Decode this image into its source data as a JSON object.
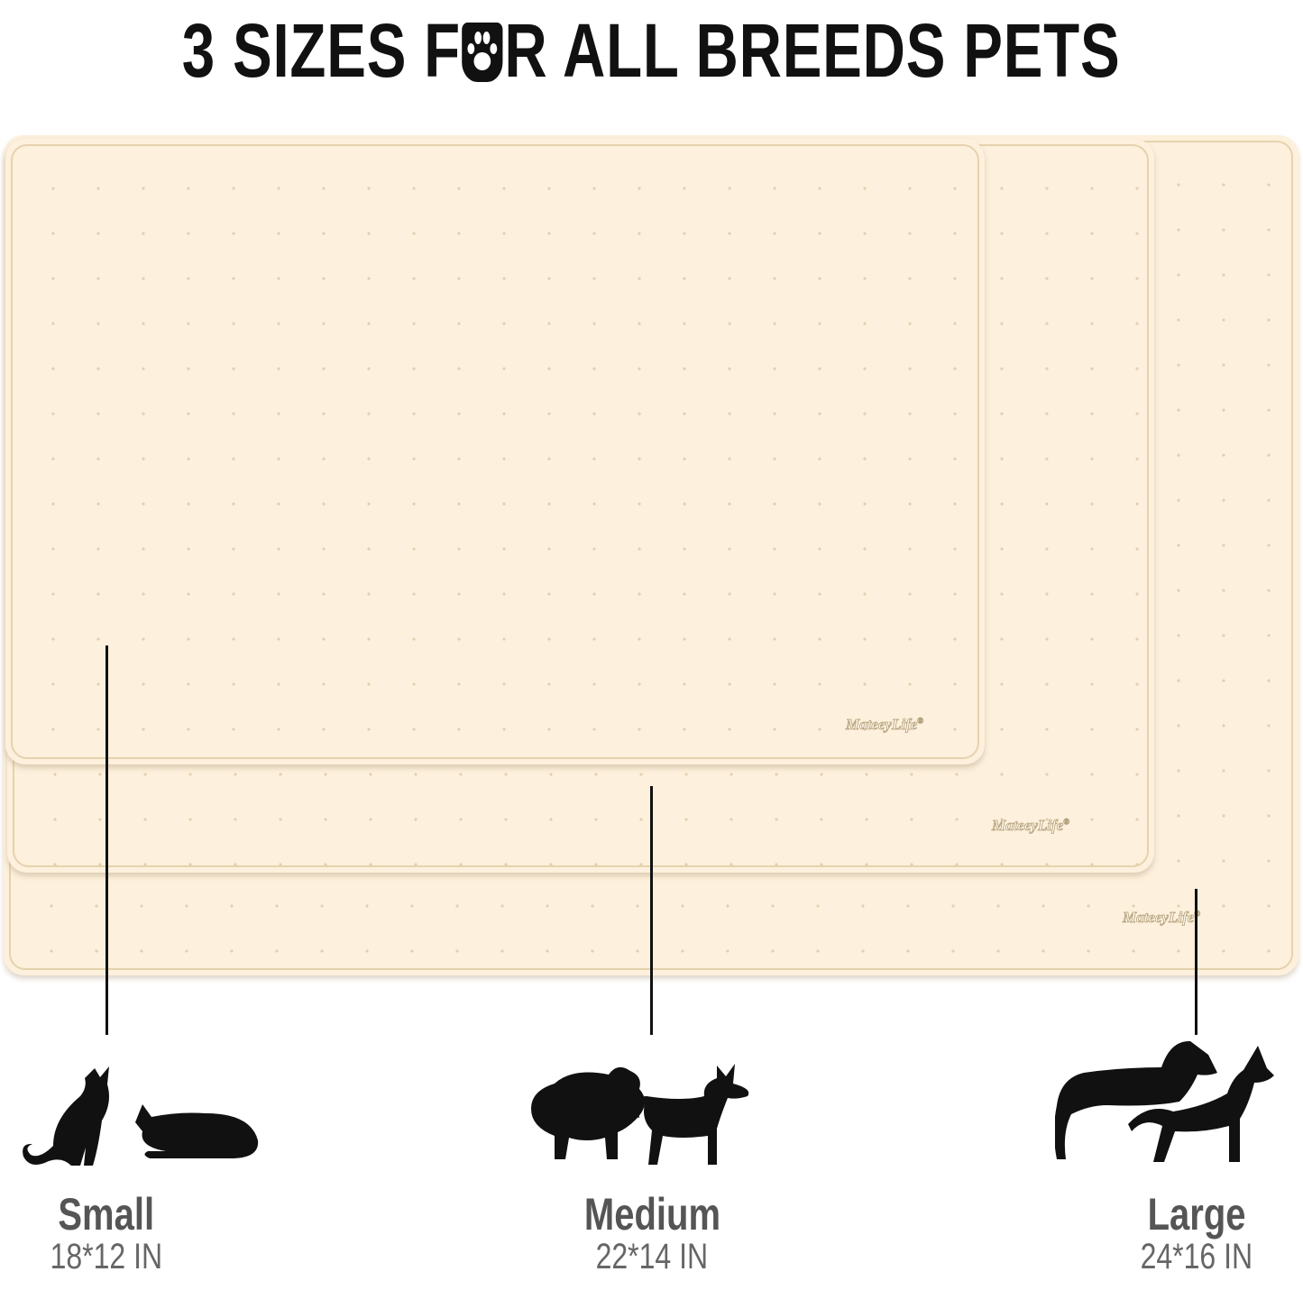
{
  "title": {
    "before": "3 SIZES F",
    "after": "R ALL BREEDS PETS",
    "icon": "paw-icon"
  },
  "brand_logo": "MateeyLife",
  "sizes": [
    {
      "name": "Small",
      "dimensions": "18*12 IN",
      "icon": "cat-silhouettes-icon"
    },
    {
      "name": "Medium",
      "dimensions": "22*14 IN",
      "icon": "small-dog-silhouettes-icon"
    },
    {
      "name": "Large",
      "dimensions": "24*16 IN",
      "icon": "large-dog-silhouettes-icon"
    }
  ],
  "colors": {
    "mat": "#fdf0dc",
    "text": "#111111",
    "label": "#555555"
  }
}
